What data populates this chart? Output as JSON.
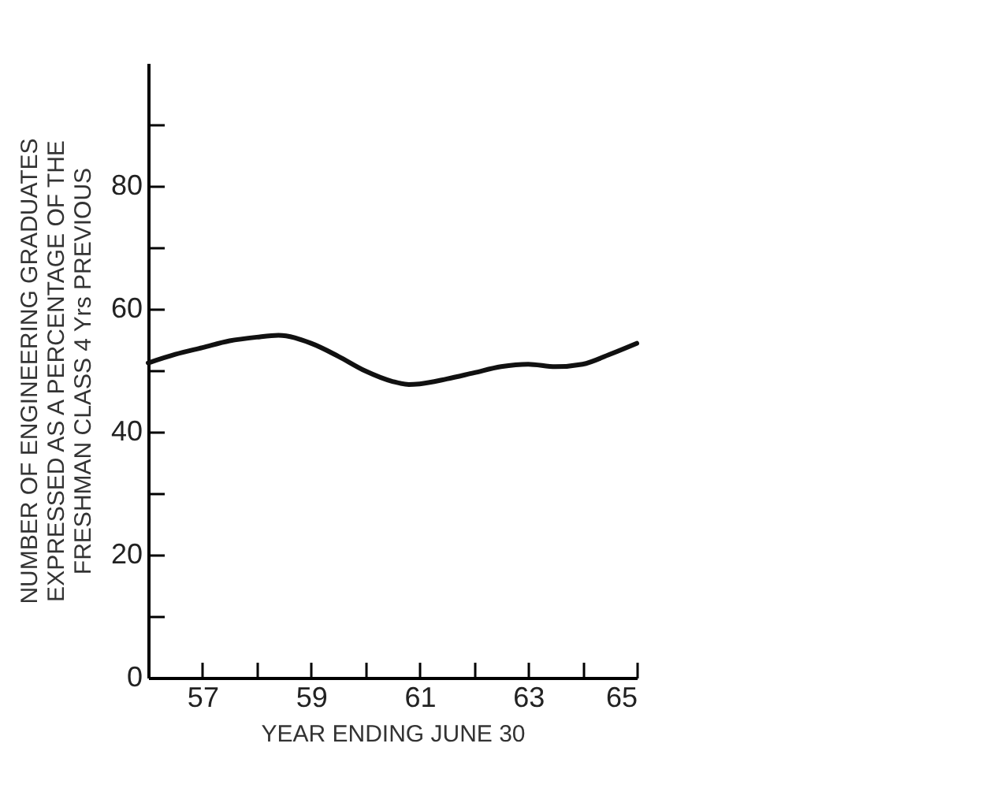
{
  "chart_data": {
    "type": "line",
    "xlabel": "YEAR ENDING JUNE 30",
    "ylabel": "NUMBER OF ENGINEERING GRADUATES\nEXPRESSED AS A PERCENTAGE OF THE\nFRESHMAN CLASS 4 Yrs PREVIOUS",
    "x": [
      56,
      56.5,
      57,
      57.5,
      58,
      58.4,
      59,
      59.5,
      60,
      60.5,
      60.8,
      61,
      61.5,
      62,
      62.5,
      63,
      63.5,
      64,
      64.5,
      65
    ],
    "series": [
      {
        "color": "#111111",
        "values": [
          51.2,
          52.6,
          53.7,
          54.8,
          55.4,
          55.7,
          54.4,
          52.3,
          49.9,
          48.2,
          47.7,
          47.8,
          48.6,
          49.6,
          50.6,
          51,
          50.6,
          51,
          52.6,
          54.4
        ]
      }
    ],
    "xlim": [
      56,
      65
    ],
    "xticks": [
      {
        "value": 56,
        "label": null
      },
      57,
      {
        "value": 58,
        "label": null
      },
      59,
      {
        "value": 60,
        "label": null
      },
      61,
      {
        "value": 62,
        "label": null
      },
      63,
      {
        "value": 64,
        "label": null
      },
      65
    ],
    "ylim": [
      0,
      100
    ],
    "yticks": [
      0,
      {
        "value": 10,
        "label": null
      },
      20,
      {
        "value": 30,
        "label": null
      },
      40,
      {
        "value": 50,
        "label": null
      },
      60,
      {
        "value": 70,
        "label": null
      },
      80,
      {
        "value": 90,
        "label": null
      }
    ],
    "grid": false,
    "marker": "none",
    "line_style": "solid"
  }
}
